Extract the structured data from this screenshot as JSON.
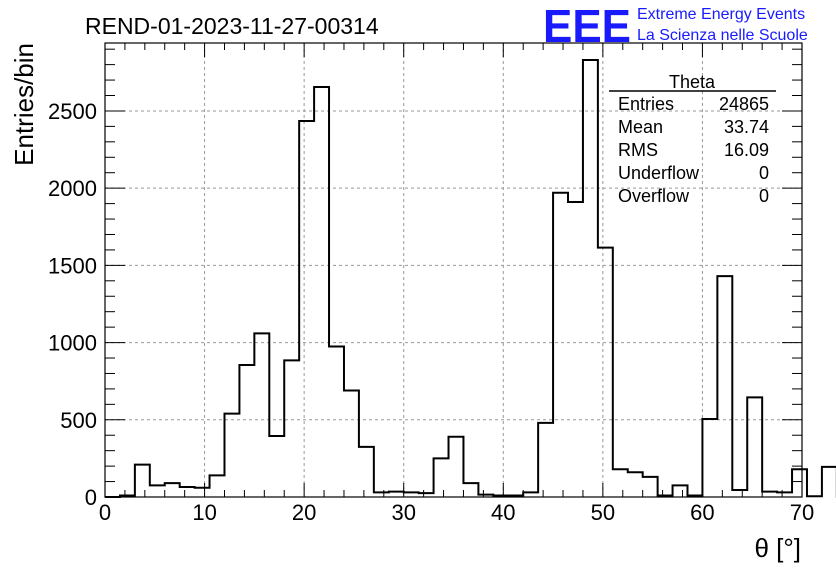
{
  "header": {
    "run_title": "REND-01-2023-11-27-00314",
    "logo_text": "EEE",
    "logo_line1": "Extreme Energy Events",
    "logo_line2": "La Scienza nelle Scuole"
  },
  "stats": {
    "title": "Theta",
    "rows": [
      {
        "label": "Entries",
        "value": "24865"
      },
      {
        "label": "Mean",
        "value": "33.74"
      },
      {
        "label": "RMS",
        "value": "16.09"
      },
      {
        "label": "Underflow",
        "value": "0"
      },
      {
        "label": "Overflow",
        "value": "0"
      }
    ]
  },
  "colors": {
    "logo": "#1a1aff",
    "histogram": "#000000",
    "grid": "#999999"
  },
  "chart_data": {
    "type": "bar",
    "title": "",
    "xlabel": "θ [°]",
    "ylabel": "Entries/bin",
    "xlim": [
      0,
      70
    ],
    "ylim": [
      0,
      2940
    ],
    "grid": true,
    "xticks": [
      0,
      10,
      20,
      30,
      40,
      50,
      60,
      70
    ],
    "yticks": [
      0,
      500,
      1000,
      1500,
      2000,
      2500
    ],
    "bin_width": 1.5,
    "bin_edges_start": 0,
    "values": [
      0,
      10,
      210,
      75,
      90,
      65,
      60,
      140,
      540,
      855,
      1060,
      395,
      885,
      2435,
      2655,
      975,
      690,
      325,
      30,
      35,
      30,
      25,
      250,
      390,
      90,
      15,
      10,
      10,
      30,
      480,
      1970,
      1910,
      2830,
      1615,
      180,
      160,
      130,
      10,
      75,
      10,
      505,
      1430,
      45,
      645,
      35,
      30,
      180,
      5,
      195,
      0
    ],
    "legend_position": "top-right"
  }
}
